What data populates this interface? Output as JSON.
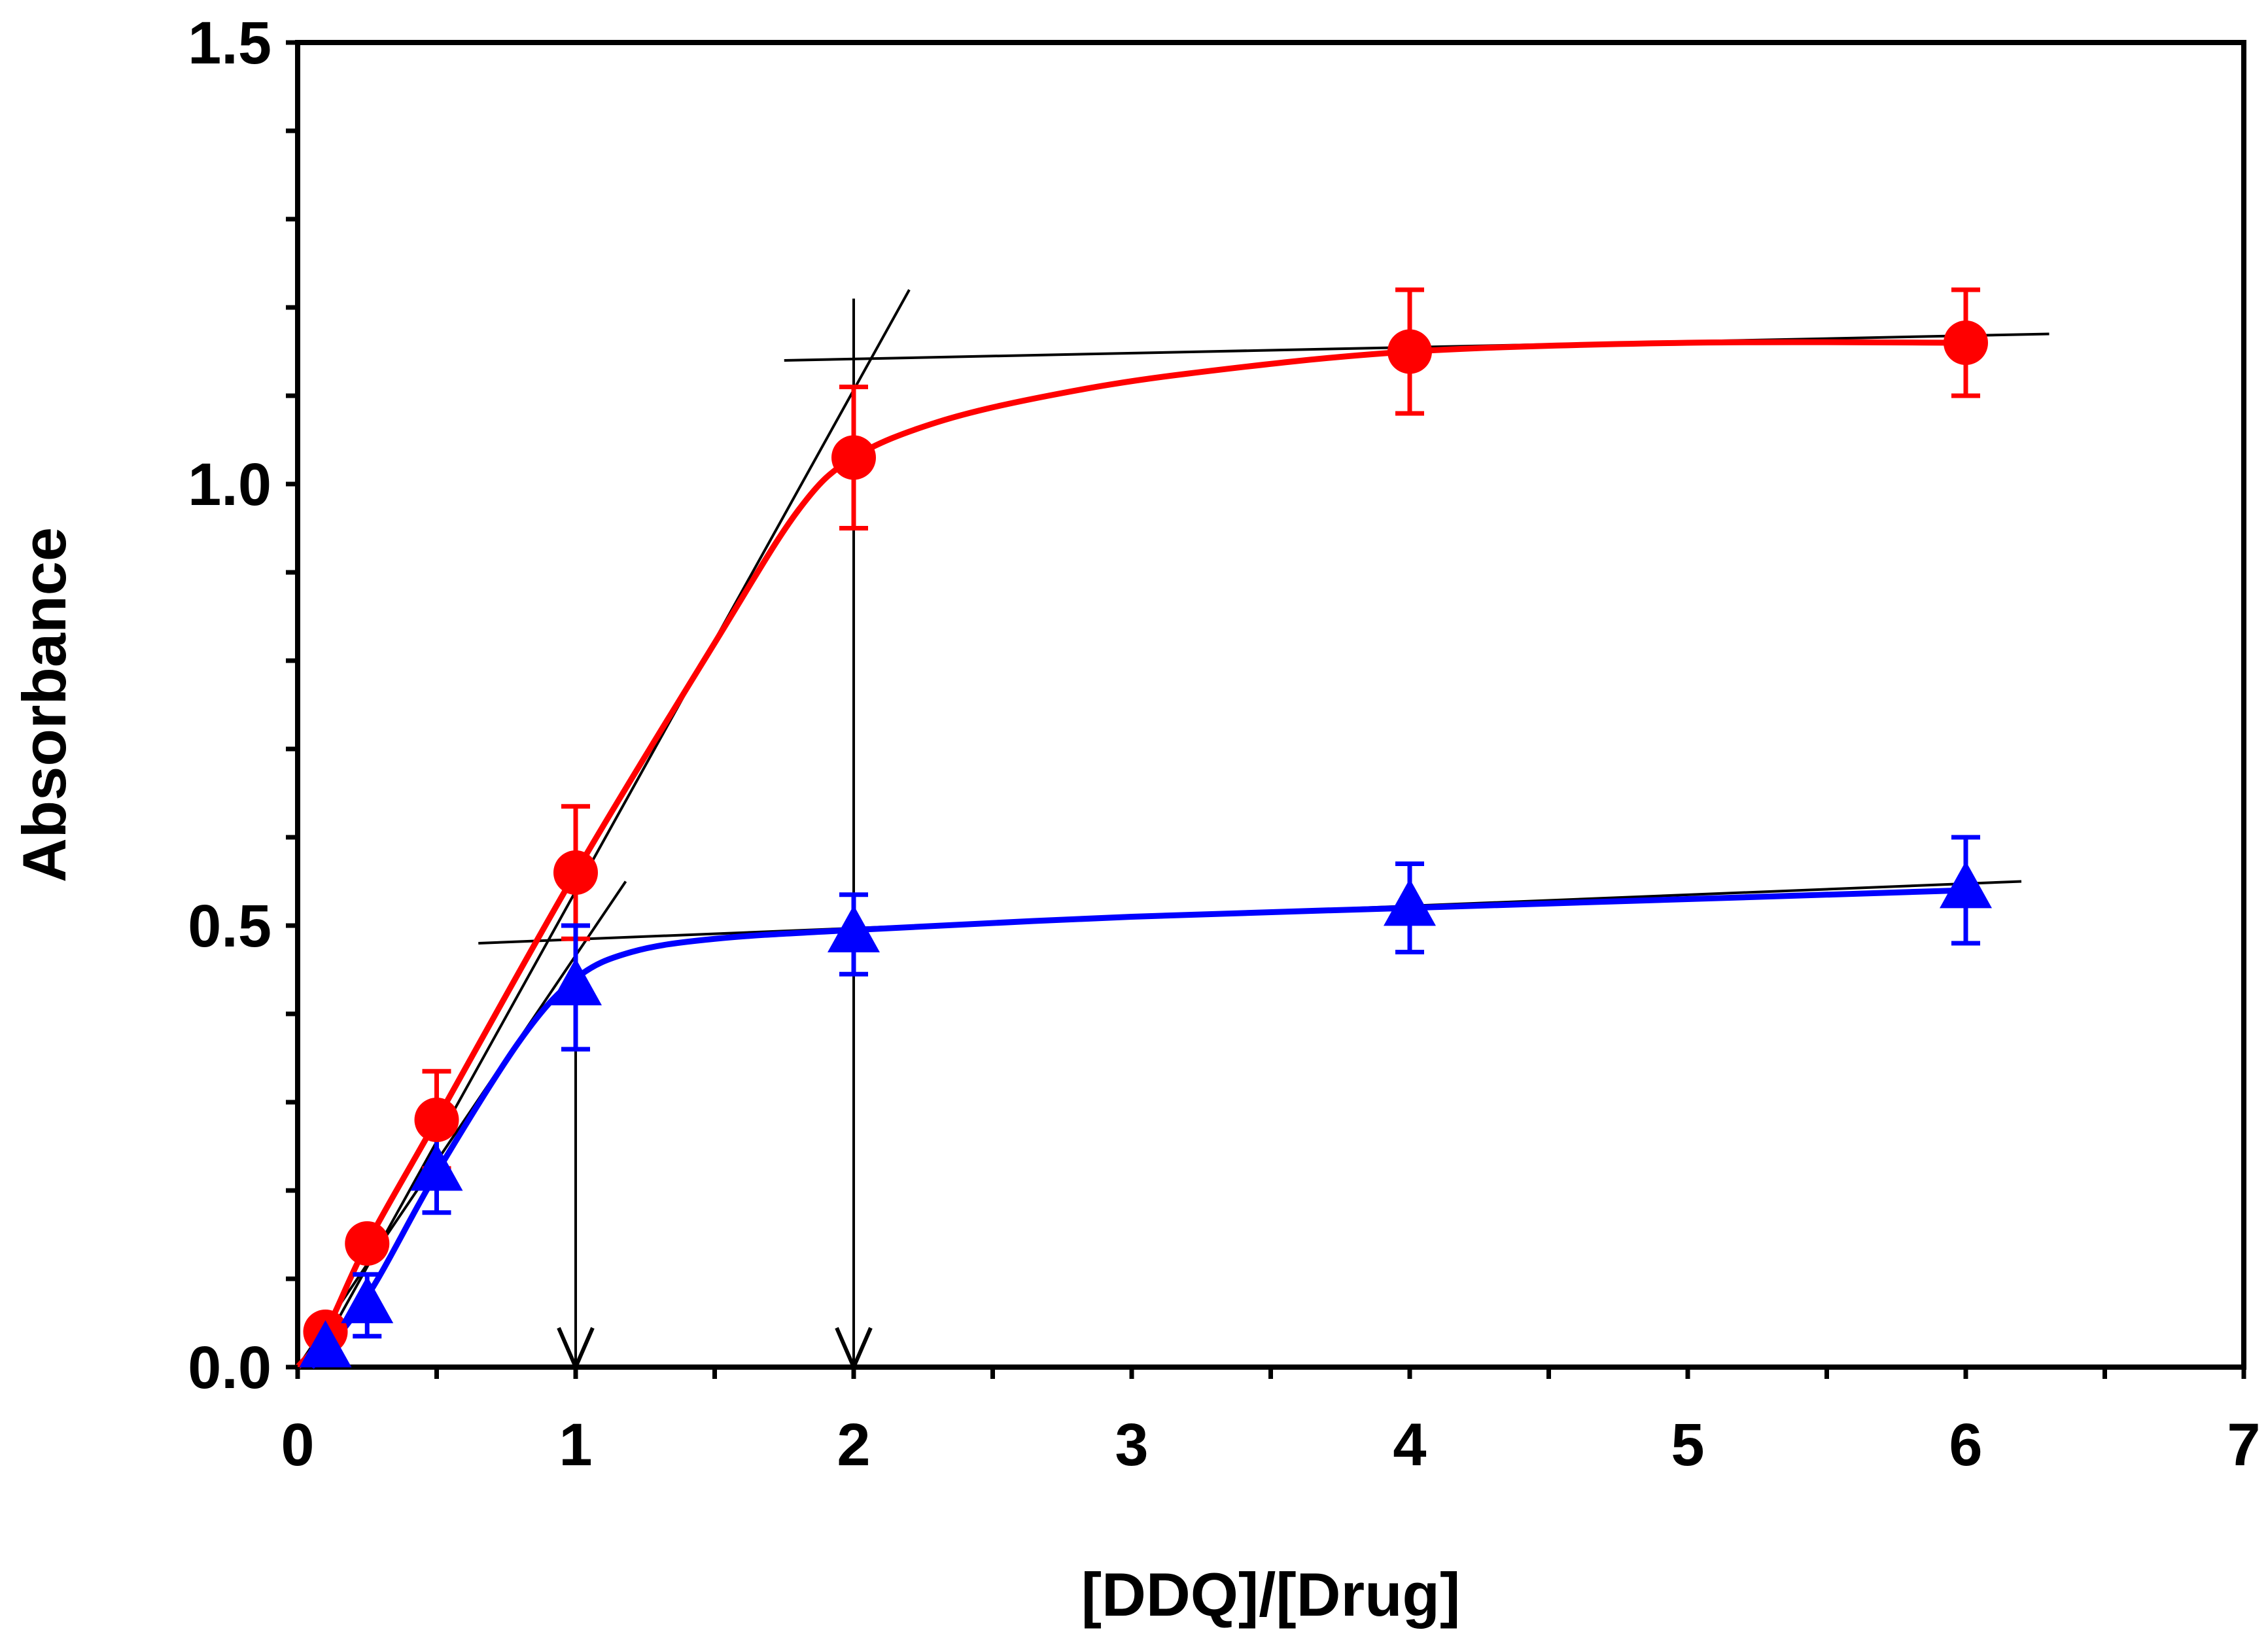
{
  "chart_data": {
    "type": "scatter",
    "title": "",
    "xlabel": "[DDQ]/[Drug]",
    "ylabel": "Absorbance",
    "xlim": [
      0,
      7
    ],
    "ylim": [
      0,
      1.5
    ],
    "x_tick_labels": [
      "0",
      "1",
      "2",
      "3",
      "4",
      "5",
      "6",
      "7"
    ],
    "x_tick_values": [
      0,
      1,
      2,
      3,
      4,
      5,
      6,
      7
    ],
    "y_tick_labels": [
      "0.0",
      "0.5",
      "1.0",
      "1.5"
    ],
    "y_tick_values": [
      0,
      0.5,
      1.0,
      1.5
    ],
    "y_minor_step": 0.1,
    "x_minor_step": 0.5,
    "grid": false,
    "legend": "none",
    "series": [
      {
        "name": "red-circles",
        "color": "#ff0000",
        "marker": "circle",
        "x": [
          0.1,
          0.25,
          0.5,
          1,
          2,
          4,
          6
        ],
        "y": [
          0.04,
          0.14,
          0.28,
          0.56,
          1.03,
          1.15,
          1.16
        ],
        "error": [
          0.0,
          0.0,
          0.055,
          0.075,
          0.08,
          0.07,
          0.06
        ],
        "curve": [
          [
            0,
            0
          ],
          [
            0.1,
            0.04
          ],
          [
            0.25,
            0.14
          ],
          [
            0.5,
            0.28
          ],
          [
            1,
            0.56
          ],
          [
            1.5,
            0.82
          ],
          [
            1.8,
            0.97
          ],
          [
            2,
            1.03
          ],
          [
            2.3,
            1.07
          ],
          [
            2.7,
            1.1
          ],
          [
            3.2,
            1.125
          ],
          [
            4,
            1.15
          ],
          [
            5,
            1.16
          ],
          [
            6,
            1.16
          ]
        ]
      },
      {
        "name": "blue-triangles",
        "color": "#0000ff",
        "marker": "triangle",
        "x": [
          0.1,
          0.25,
          0.5,
          1,
          2,
          4,
          6
        ],
        "y": [
          0.02,
          0.07,
          0.22,
          0.43,
          0.49,
          0.52,
          0.54
        ],
        "error": [
          0.0,
          0.035,
          0.045,
          0.07,
          0.045,
          0.05,
          0.06
        ],
        "curve": [
          [
            0.05,
            0
          ],
          [
            0.25,
            0.08
          ],
          [
            0.5,
            0.22
          ],
          [
            0.8,
            0.37
          ],
          [
            1,
            0.44
          ],
          [
            1.2,
            0.47
          ],
          [
            1.5,
            0.485
          ],
          [
            2,
            0.495
          ],
          [
            3,
            0.51
          ],
          [
            4,
            0.52
          ],
          [
            5,
            0.53
          ],
          [
            6,
            0.54
          ]
        ]
      }
    ],
    "tangent_lines": [
      {
        "x1": 0.05,
        "y1": 0.0,
        "x2": 2.2,
        "y2": 1.22
      },
      {
        "x1": 1.75,
        "y1": 1.14,
        "x2": 6.3,
        "y2": 1.17
      },
      {
        "x1": 0.0,
        "y1": 0.0,
        "x2": 1.18,
        "y2": 0.55
      },
      {
        "x1": 0.65,
        "y1": 0.48,
        "x2": 6.2,
        "y2": 0.55
      }
    ],
    "arrows": [
      {
        "x": 1,
        "y_from": 0.48,
        "y_to": 0.0
      },
      {
        "x": 2,
        "y_from": 1.21,
        "y_to": 0.0
      }
    ]
  }
}
